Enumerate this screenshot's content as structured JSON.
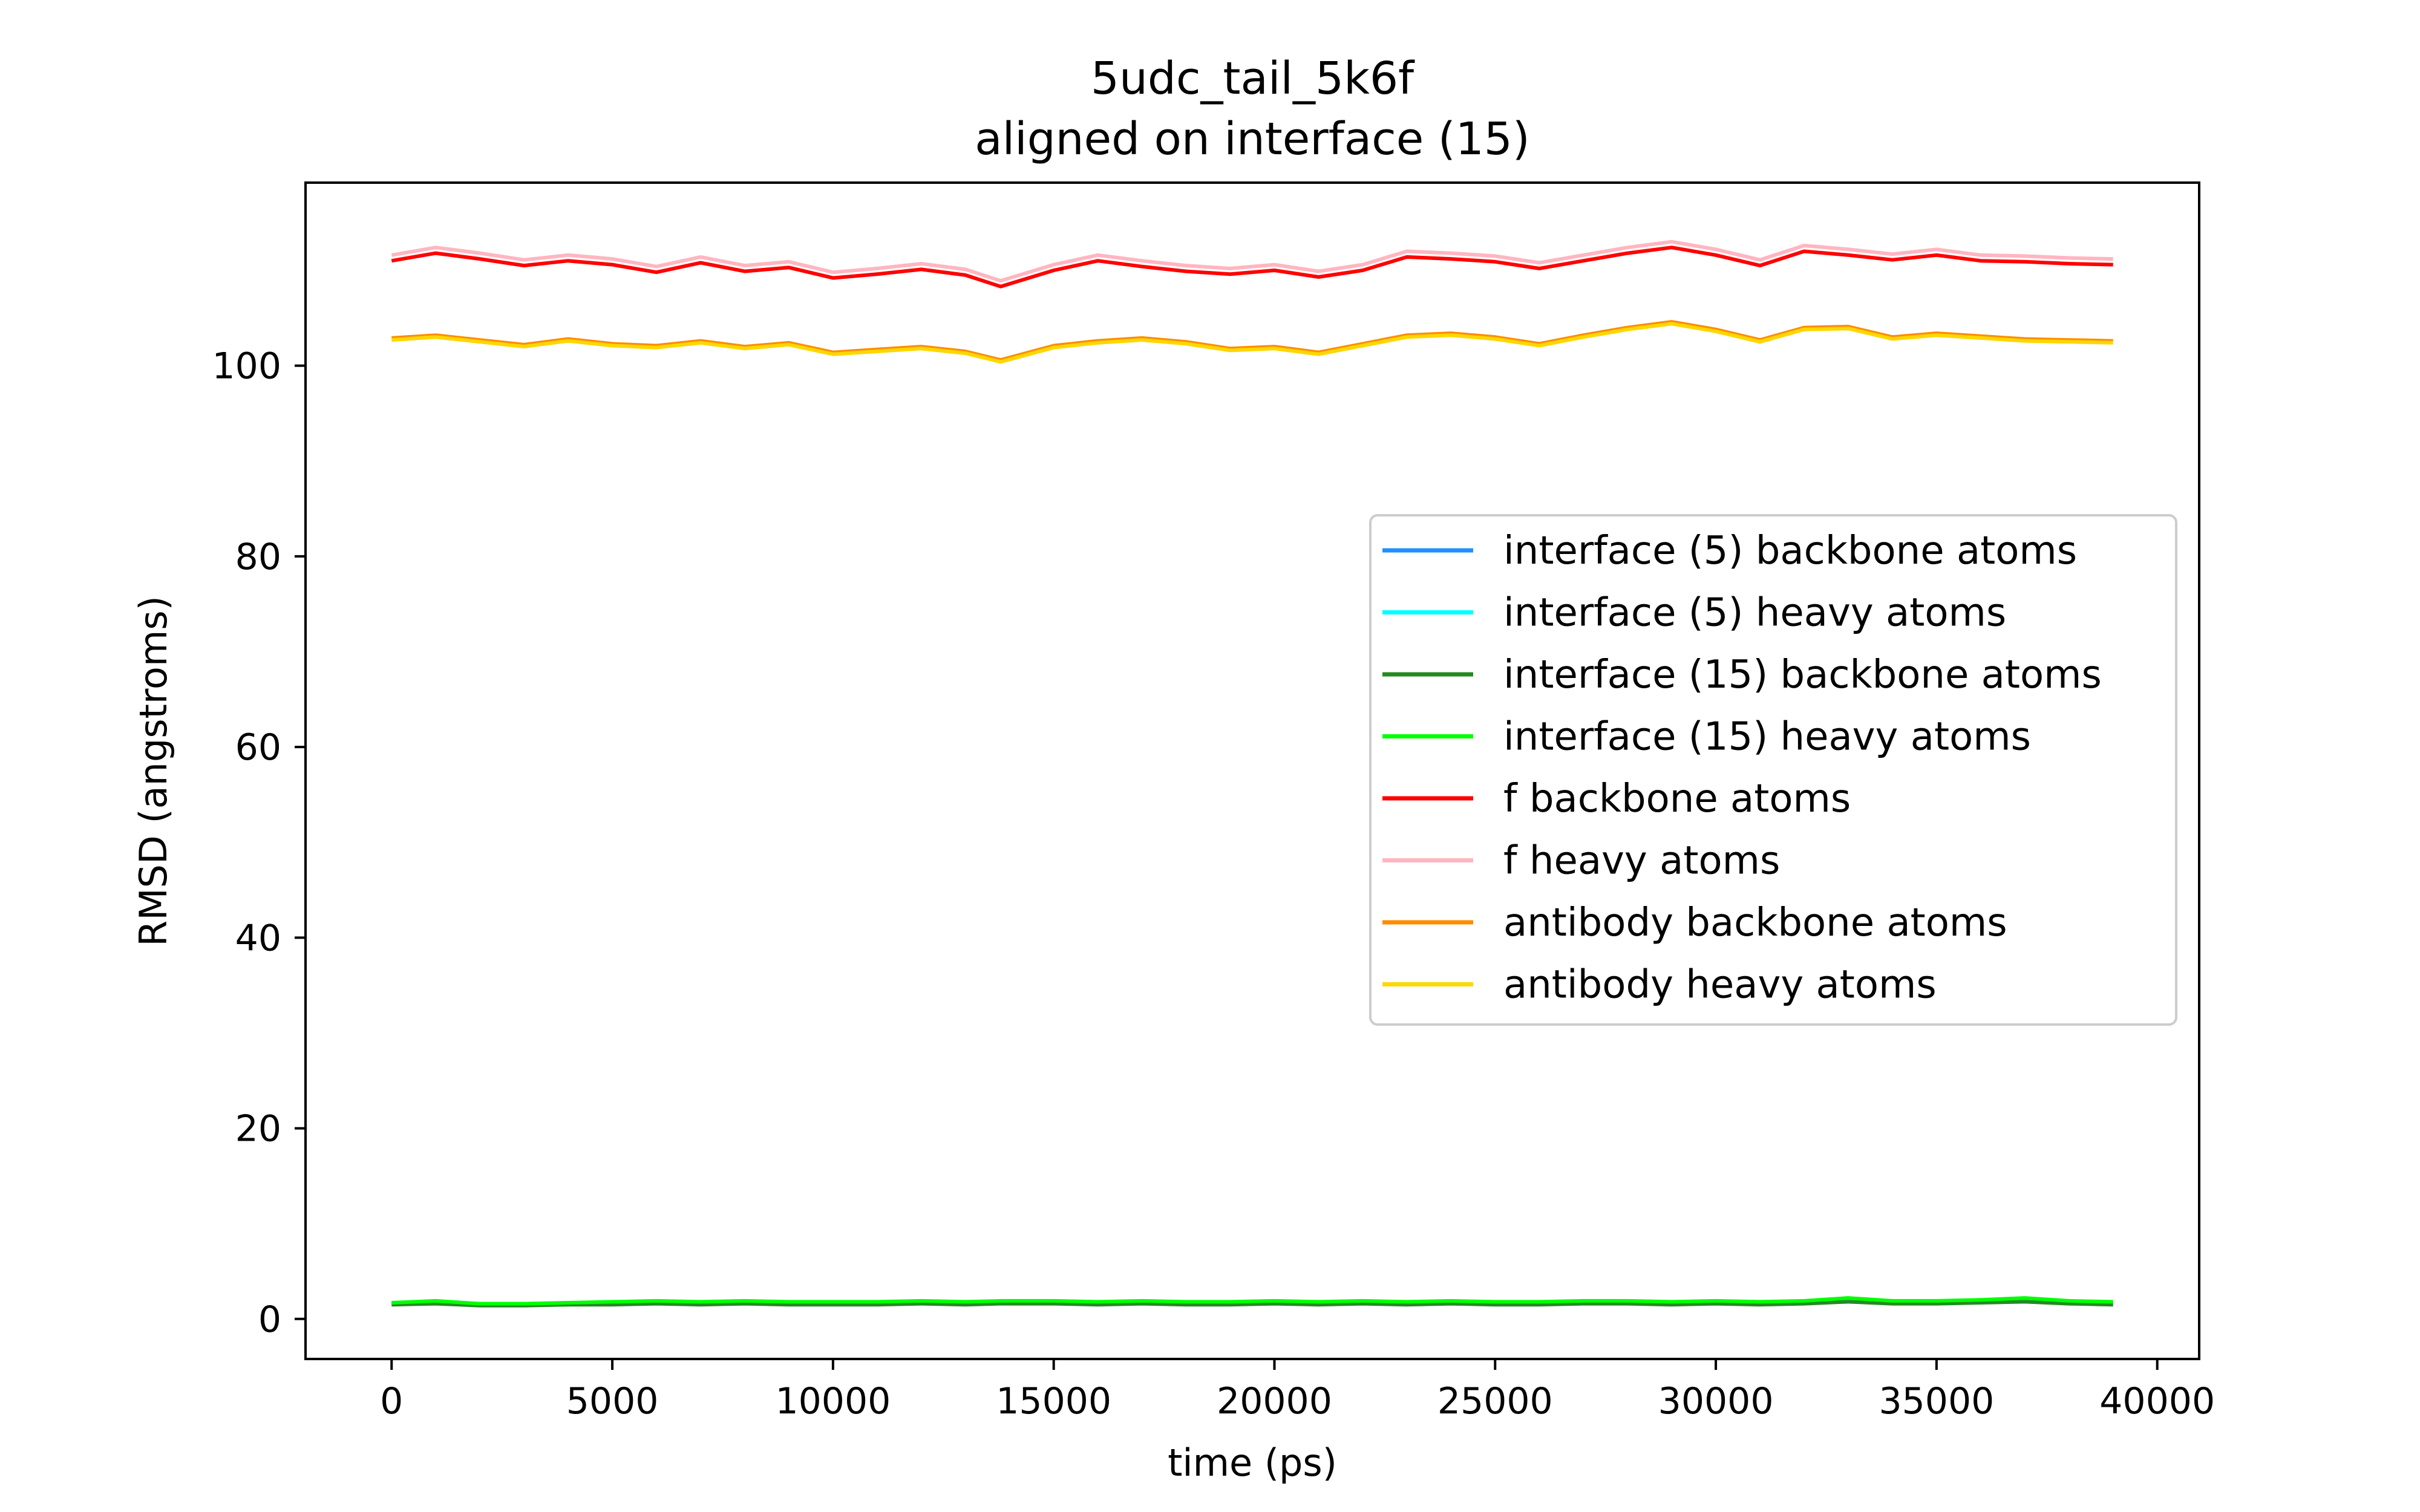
{
  "chart_data": {
    "type": "line",
    "title": "5udc_tail_5k6f",
    "subtitle": "aligned on interface (15)",
    "xlabel": "time (ps)",
    "ylabel": "RMSD (angstroms)",
    "xlim": [
      -1950,
      40950
    ],
    "ylim": [
      -4.2,
      119.2
    ],
    "x_ticks": [
      0,
      5000,
      10000,
      15000,
      20000,
      25000,
      30000,
      35000,
      40000
    ],
    "x_tick_labels": [
      "0",
      "5000",
      "10000",
      "15000",
      "20000",
      "25000",
      "30000",
      "35000",
      "40000"
    ],
    "y_ticks": [
      0,
      20,
      40,
      60,
      80,
      100
    ],
    "y_tick_labels": [
      "0",
      "20",
      "40",
      "60",
      "80",
      "100"
    ],
    "grid": false,
    "legend_position": "center-right",
    "x": [
      0,
      1000,
      2000,
      3000,
      4000,
      5000,
      6000,
      7000,
      8000,
      9000,
      10000,
      11000,
      12000,
      13000,
      13800,
      15000,
      16000,
      17000,
      18000,
      19000,
      20000,
      21000,
      22000,
      23000,
      24000,
      25000,
      26000,
      27000,
      28000,
      29000,
      30000,
      31000,
      32000,
      33000,
      34000,
      35000,
      36000,
      37000,
      38000,
      39000
    ],
    "series": [
      {
        "name": "interface (5) backbone atoms",
        "color": "#1e90ff",
        "values": [
          1.6,
          1.7,
          1.5,
          1.5,
          1.6,
          1.6,
          1.7,
          1.6,
          1.7,
          1.6,
          1.6,
          1.6,
          1.7,
          1.6,
          1.7,
          1.7,
          1.6,
          1.7,
          1.6,
          1.6,
          1.7,
          1.6,
          1.7,
          1.6,
          1.7,
          1.6,
          1.6,
          1.7,
          1.7,
          1.6,
          1.7,
          1.6,
          1.7,
          1.9,
          1.7,
          1.7,
          1.8,
          1.9,
          1.7,
          1.6
        ]
      },
      {
        "name": "interface (5) heavy atoms",
        "color": "#00ffff",
        "values": [
          1.7,
          1.8,
          1.6,
          1.6,
          1.7,
          1.7,
          1.8,
          1.7,
          1.8,
          1.7,
          1.7,
          1.7,
          1.8,
          1.7,
          1.8,
          1.8,
          1.7,
          1.8,
          1.7,
          1.7,
          1.8,
          1.7,
          1.8,
          1.7,
          1.8,
          1.7,
          1.7,
          1.8,
          1.8,
          1.7,
          1.8,
          1.7,
          1.8,
          2.0,
          1.8,
          1.8,
          1.9,
          2.0,
          1.8,
          1.7
        ]
      },
      {
        "name": "interface (15) backbone atoms",
        "color": "#228b22",
        "values": [
          1.5,
          1.6,
          1.4,
          1.4,
          1.5,
          1.5,
          1.6,
          1.5,
          1.6,
          1.5,
          1.5,
          1.5,
          1.6,
          1.5,
          1.6,
          1.6,
          1.5,
          1.6,
          1.5,
          1.5,
          1.6,
          1.5,
          1.6,
          1.5,
          1.6,
          1.5,
          1.5,
          1.6,
          1.6,
          1.5,
          1.6,
          1.5,
          1.6,
          1.8,
          1.6,
          1.6,
          1.7,
          1.8,
          1.6,
          1.5
        ]
      },
      {
        "name": "interface (15) heavy atoms",
        "color": "#00ff00",
        "values": [
          1.7,
          1.9,
          1.6,
          1.6,
          1.7,
          1.8,
          1.9,
          1.8,
          1.9,
          1.8,
          1.8,
          1.8,
          1.9,
          1.8,
          1.9,
          1.9,
          1.8,
          1.9,
          1.8,
          1.8,
          1.9,
          1.8,
          1.9,
          1.8,
          1.9,
          1.8,
          1.8,
          1.9,
          1.9,
          1.8,
          1.9,
          1.8,
          1.9,
          2.2,
          1.9,
          1.9,
          2.0,
          2.2,
          1.9,
          1.8
        ]
      },
      {
        "name": "f backbone atoms",
        "color": "#ff0000",
        "values": [
          111.0,
          111.8,
          111.2,
          110.5,
          111.0,
          110.6,
          109.8,
          110.8,
          109.9,
          110.3,
          109.2,
          109.6,
          110.1,
          109.5,
          108.3,
          110.0,
          111.0,
          110.4,
          109.9,
          109.6,
          110.0,
          109.3,
          110.0,
          111.4,
          111.2,
          110.9,
          110.2,
          111.0,
          111.8,
          112.4,
          111.6,
          110.5,
          112.0,
          111.6,
          111.1,
          111.6,
          111.0,
          110.9,
          110.7,
          110.6
        ]
      },
      {
        "name": "f heavy atoms",
        "color": "#ffb6c1",
        "values": [
          111.6,
          112.4,
          111.8,
          111.1,
          111.6,
          111.2,
          110.4,
          111.4,
          110.5,
          110.9,
          109.8,
          110.2,
          110.7,
          110.1,
          108.9,
          110.6,
          111.6,
          111.0,
          110.5,
          110.2,
          110.6,
          109.9,
          110.6,
          112.0,
          111.8,
          111.5,
          110.8,
          111.6,
          112.4,
          113.0,
          112.2,
          111.1,
          112.6,
          112.2,
          111.7,
          112.2,
          111.6,
          111.5,
          111.3,
          111.2
        ]
      },
      {
        "name": "antibody backbone atoms",
        "color": "#ff8c00",
        "values": [
          102.9,
          103.2,
          102.7,
          102.2,
          102.8,
          102.3,
          102.1,
          102.6,
          102.0,
          102.4,
          101.4,
          101.7,
          102.0,
          101.5,
          100.6,
          102.1,
          102.6,
          102.9,
          102.5,
          101.8,
          102.0,
          101.4,
          102.3,
          103.2,
          103.4,
          103.0,
          102.3,
          103.2,
          104.0,
          104.6,
          103.8,
          102.7,
          104.0,
          104.1,
          103.0,
          103.4,
          103.1,
          102.8,
          102.7,
          102.6
        ]
      },
      {
        "name": "antibody heavy atoms",
        "color": "#ffd700",
        "values": [
          102.7,
          103.0,
          102.5,
          102.0,
          102.6,
          102.1,
          101.9,
          102.4,
          101.8,
          102.2,
          101.2,
          101.5,
          101.8,
          101.3,
          100.4,
          101.9,
          102.4,
          102.7,
          102.3,
          101.6,
          101.8,
          101.2,
          102.1,
          103.0,
          103.2,
          102.8,
          102.1,
          103.0,
          103.8,
          104.4,
          103.6,
          102.5,
          103.8,
          103.9,
          102.8,
          103.2,
          102.9,
          102.6,
          102.5,
          102.4
        ]
      }
    ]
  }
}
